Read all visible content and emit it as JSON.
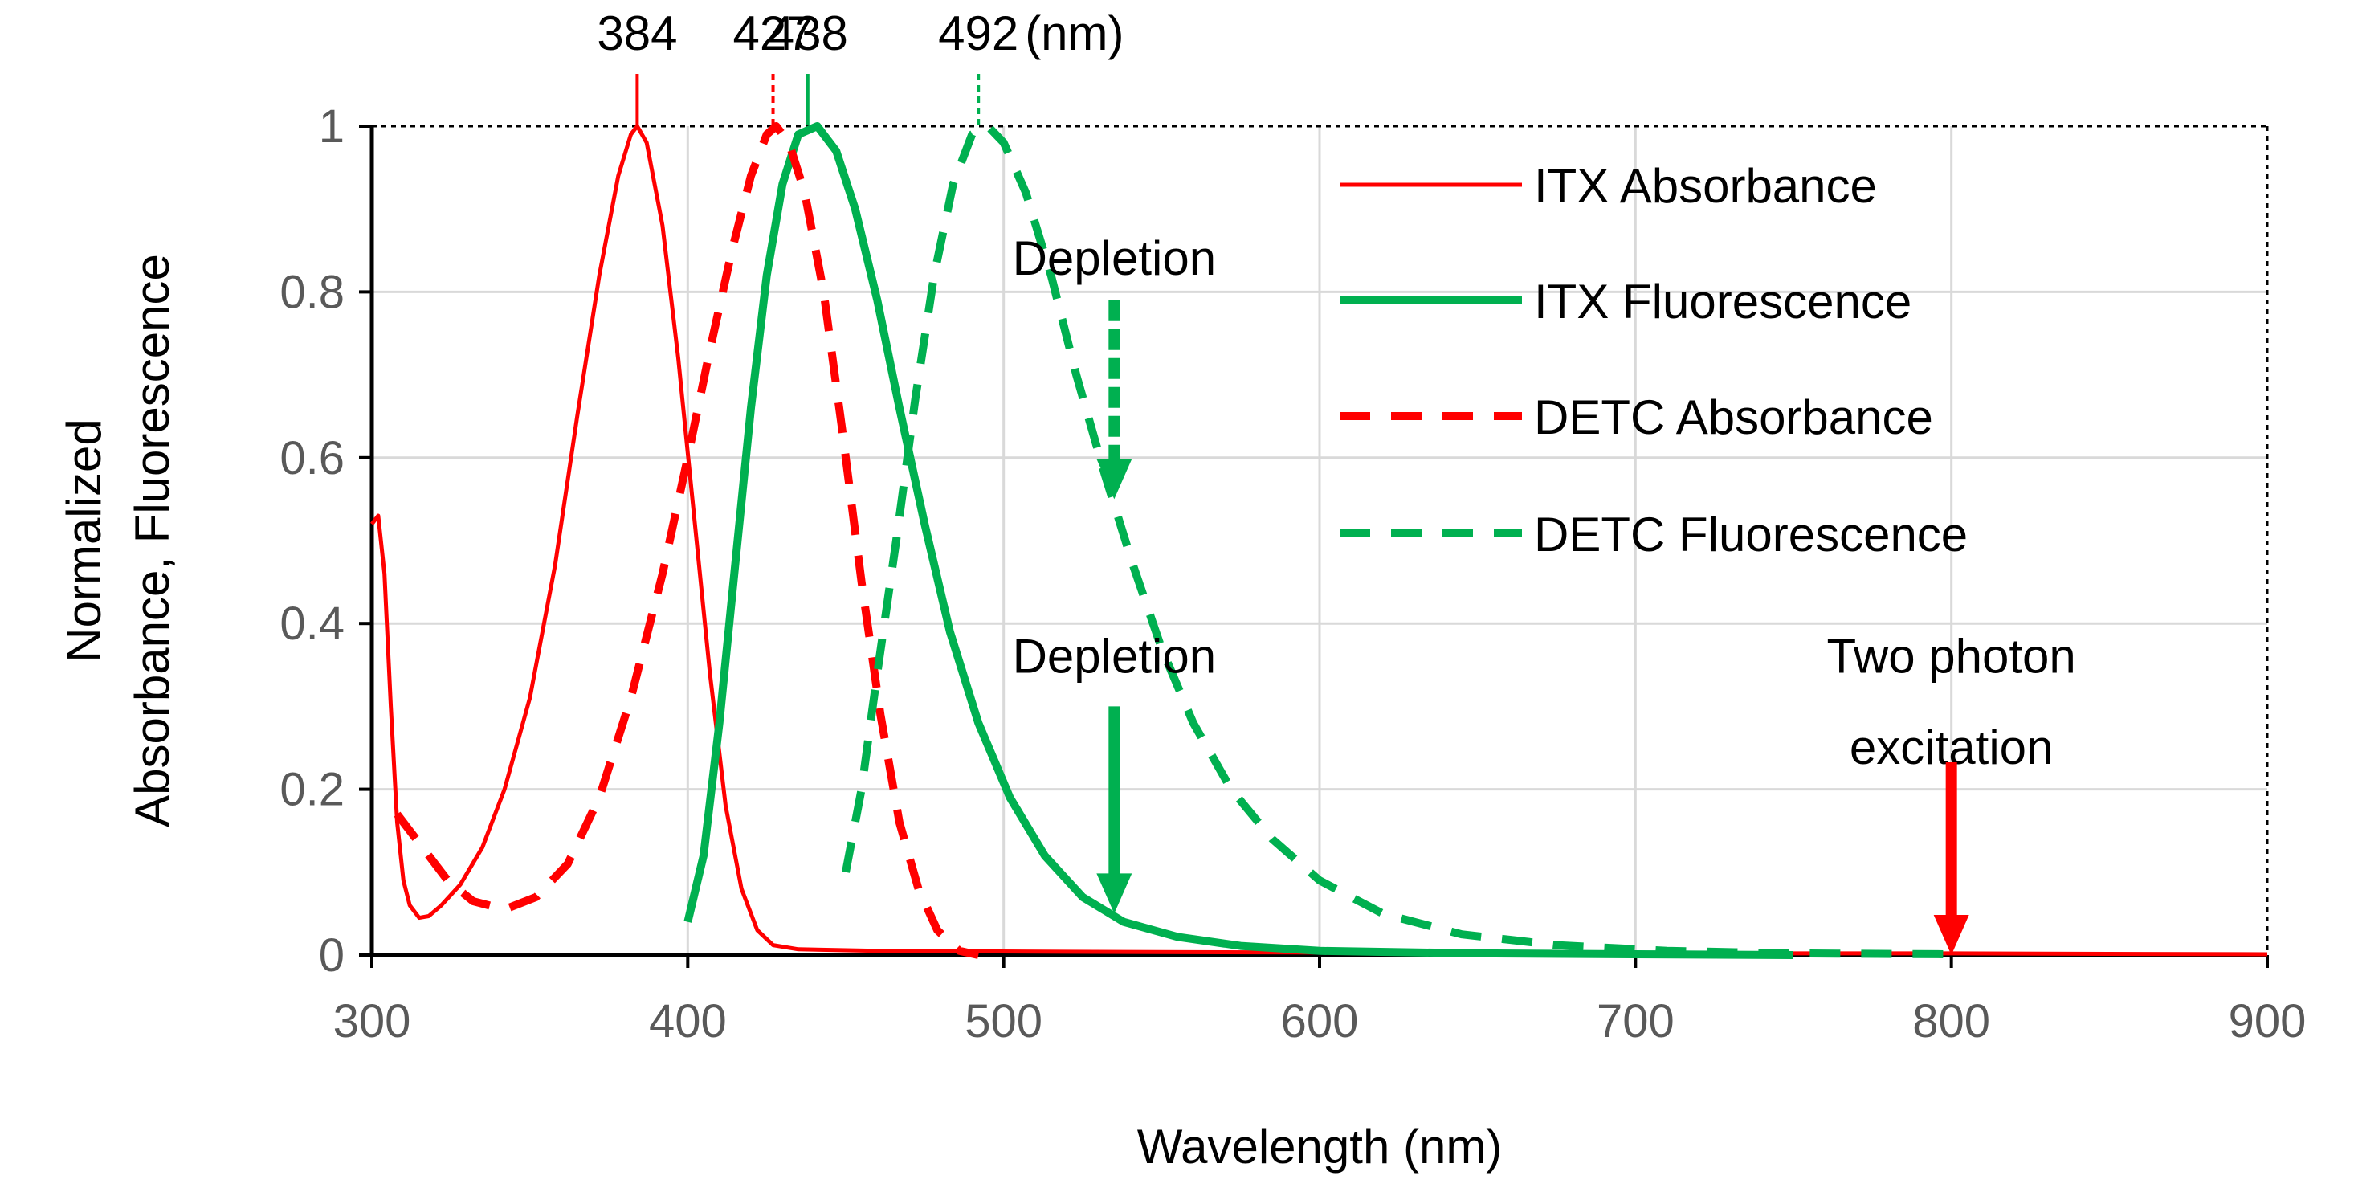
{
  "chart_data": {
    "type": "line",
    "xlabel": "Wavelength (nm)",
    "ylabel_lines": [
      "Normalized",
      "Absorbance, Fluorescence"
    ],
    "xlim": [
      300,
      900
    ],
    "ylim": [
      0,
      1
    ],
    "x_ticks": [
      "300",
      "400",
      "500",
      "600",
      "700",
      "800",
      "900"
    ],
    "y_ticks": [
      "0",
      "0.2",
      "0.4",
      "0.6",
      "0.8",
      "1"
    ],
    "grid": true,
    "legend_position": "top-right",
    "peak_labels": [
      {
        "x": 384,
        "text": "384",
        "color": "#ff0000",
        "dashed": false
      },
      {
        "x": 427,
        "text": "427",
        "color": "#ff0000",
        "dashed": true
      },
      {
        "x": 438,
        "text": "438",
        "color": "#00b050",
        "dashed": false
      },
      {
        "x": 492,
        "text": "492",
        "color": "#00b050",
        "dashed": true
      }
    ],
    "peak_unit": "(nm)",
    "series": [
      {
        "name": "ITX Absorbance",
        "color": "#ff0000",
        "style": "solid",
        "points": [
          [
            300,
            0.52
          ],
          [
            302,
            0.53
          ],
          [
            304,
            0.46
          ],
          [
            306,
            0.3
          ],
          [
            308,
            0.16
          ],
          [
            310,
            0.09
          ],
          [
            312,
            0.06
          ],
          [
            315,
            0.045
          ],
          [
            318,
            0.047
          ],
          [
            322,
            0.06
          ],
          [
            328,
            0.085
          ],
          [
            335,
            0.13
          ],
          [
            342,
            0.2
          ],
          [
            350,
            0.31
          ],
          [
            358,
            0.47
          ],
          [
            365,
            0.65
          ],
          [
            372,
            0.82
          ],
          [
            378,
            0.94
          ],
          [
            382,
            0.99
          ],
          [
            384,
            1.0
          ],
          [
            387,
            0.98
          ],
          [
            392,
            0.88
          ],
          [
            397,
            0.72
          ],
          [
            402,
            0.53
          ],
          [
            407,
            0.34
          ],
          [
            412,
            0.18
          ],
          [
            417,
            0.08
          ],
          [
            422,
            0.03
          ],
          [
            427,
            0.012
          ],
          [
            435,
            0.007
          ],
          [
            460,
            0.005
          ],
          [
            520,
            0.004
          ],
          [
            600,
            0.003
          ],
          [
            700,
            0.002
          ],
          [
            800,
            0.002
          ],
          [
            900,
            0.001
          ]
        ]
      },
      {
        "name": "ITX Fluorescence",
        "color": "#00b050",
        "style": "solid",
        "points": [
          [
            400,
            0.04
          ],
          [
            405,
            0.12
          ],
          [
            410,
            0.28
          ],
          [
            415,
            0.47
          ],
          [
            420,
            0.66
          ],
          [
            425,
            0.82
          ],
          [
            430,
            0.93
          ],
          [
            435,
            0.99
          ],
          [
            441,
            1.0
          ],
          [
            447,
            0.97
          ],
          [
            453,
            0.9
          ],
          [
            460,
            0.79
          ],
          [
            467,
            0.66
          ],
          [
            475,
            0.52
          ],
          [
            483,
            0.39
          ],
          [
            492,
            0.28
          ],
          [
            502,
            0.19
          ],
          [
            513,
            0.12
          ],
          [
            525,
            0.07
          ],
          [
            538,
            0.04
          ],
          [
            555,
            0.022
          ],
          [
            575,
            0.011
          ],
          [
            600,
            0.005
          ],
          [
            650,
            0.002
          ],
          [
            700,
            0.001
          ],
          [
            750,
            0.0
          ]
        ]
      },
      {
        "name": "DETC Absorbance",
        "color": "#ff0000",
        "style": "dashed",
        "points": [
          [
            308,
            0.17
          ],
          [
            316,
            0.13
          ],
          [
            324,
            0.09
          ],
          [
            332,
            0.065
          ],
          [
            342,
            0.055
          ],
          [
            352,
            0.07
          ],
          [
            362,
            0.11
          ],
          [
            372,
            0.19
          ],
          [
            382,
            0.31
          ],
          [
            392,
            0.46
          ],
          [
            400,
            0.6
          ],
          [
            407,
            0.73
          ],
          [
            414,
            0.85
          ],
          [
            420,
            0.94
          ],
          [
            425,
            0.99
          ],
          [
            428,
            1.0
          ],
          [
            432,
            0.98
          ],
          [
            437,
            0.92
          ],
          [
            443,
            0.8
          ],
          [
            449,
            0.63
          ],
          [
            455,
            0.45
          ],
          [
            461,
            0.29
          ],
          [
            467,
            0.16
          ],
          [
            473,
            0.08
          ],
          [
            479,
            0.03
          ],
          [
            486,
            0.005
          ],
          [
            492,
            0.0
          ]
        ]
      },
      {
        "name": "DETC Fluorescence",
        "color": "#00b050",
        "style": "dashed",
        "points": [
          [
            450,
            0.1
          ],
          [
            455,
            0.2
          ],
          [
            460,
            0.34
          ],
          [
            466,
            0.5
          ],
          [
            472,
            0.67
          ],
          [
            478,
            0.82
          ],
          [
            484,
            0.93
          ],
          [
            490,
            0.99
          ],
          [
            495,
            1.0
          ],
          [
            500,
            0.98
          ],
          [
            507,
            0.92
          ],
          [
            515,
            0.82
          ],
          [
            523,
            0.7
          ],
          [
            532,
            0.58
          ],
          [
            541,
            0.47
          ],
          [
            550,
            0.37
          ],
          [
            560,
            0.28
          ],
          [
            572,
            0.2
          ],
          [
            585,
            0.14
          ],
          [
            600,
            0.09
          ],
          [
            620,
            0.05
          ],
          [
            645,
            0.025
          ],
          [
            675,
            0.012
          ],
          [
            710,
            0.005
          ],
          [
            750,
            0.002
          ],
          [
            800,
            0.001
          ]
        ]
      }
    ],
    "annotations": [
      {
        "text": "Depletion",
        "x": 535,
        "y_text": 0.84,
        "arrow_from": 0.79,
        "arrow_to": 0.55,
        "color": "#00b050",
        "style": "dashed"
      },
      {
        "text": "Depletion",
        "x": 535,
        "y_text": 0.36,
        "arrow_from": 0.3,
        "arrow_to": 0.05,
        "color": "#00b050",
        "style": "solid"
      },
      {
        "text": "Two photon",
        "x": 800,
        "y_text": 0.36,
        "color": "#ff0000",
        "style": "none"
      },
      {
        "text": "excitation",
        "x": 800,
        "y_text": 0.25,
        "arrow_from": 0.25,
        "arrow_to": 0.0,
        "color": "#ff0000",
        "style": "solid"
      }
    ]
  }
}
